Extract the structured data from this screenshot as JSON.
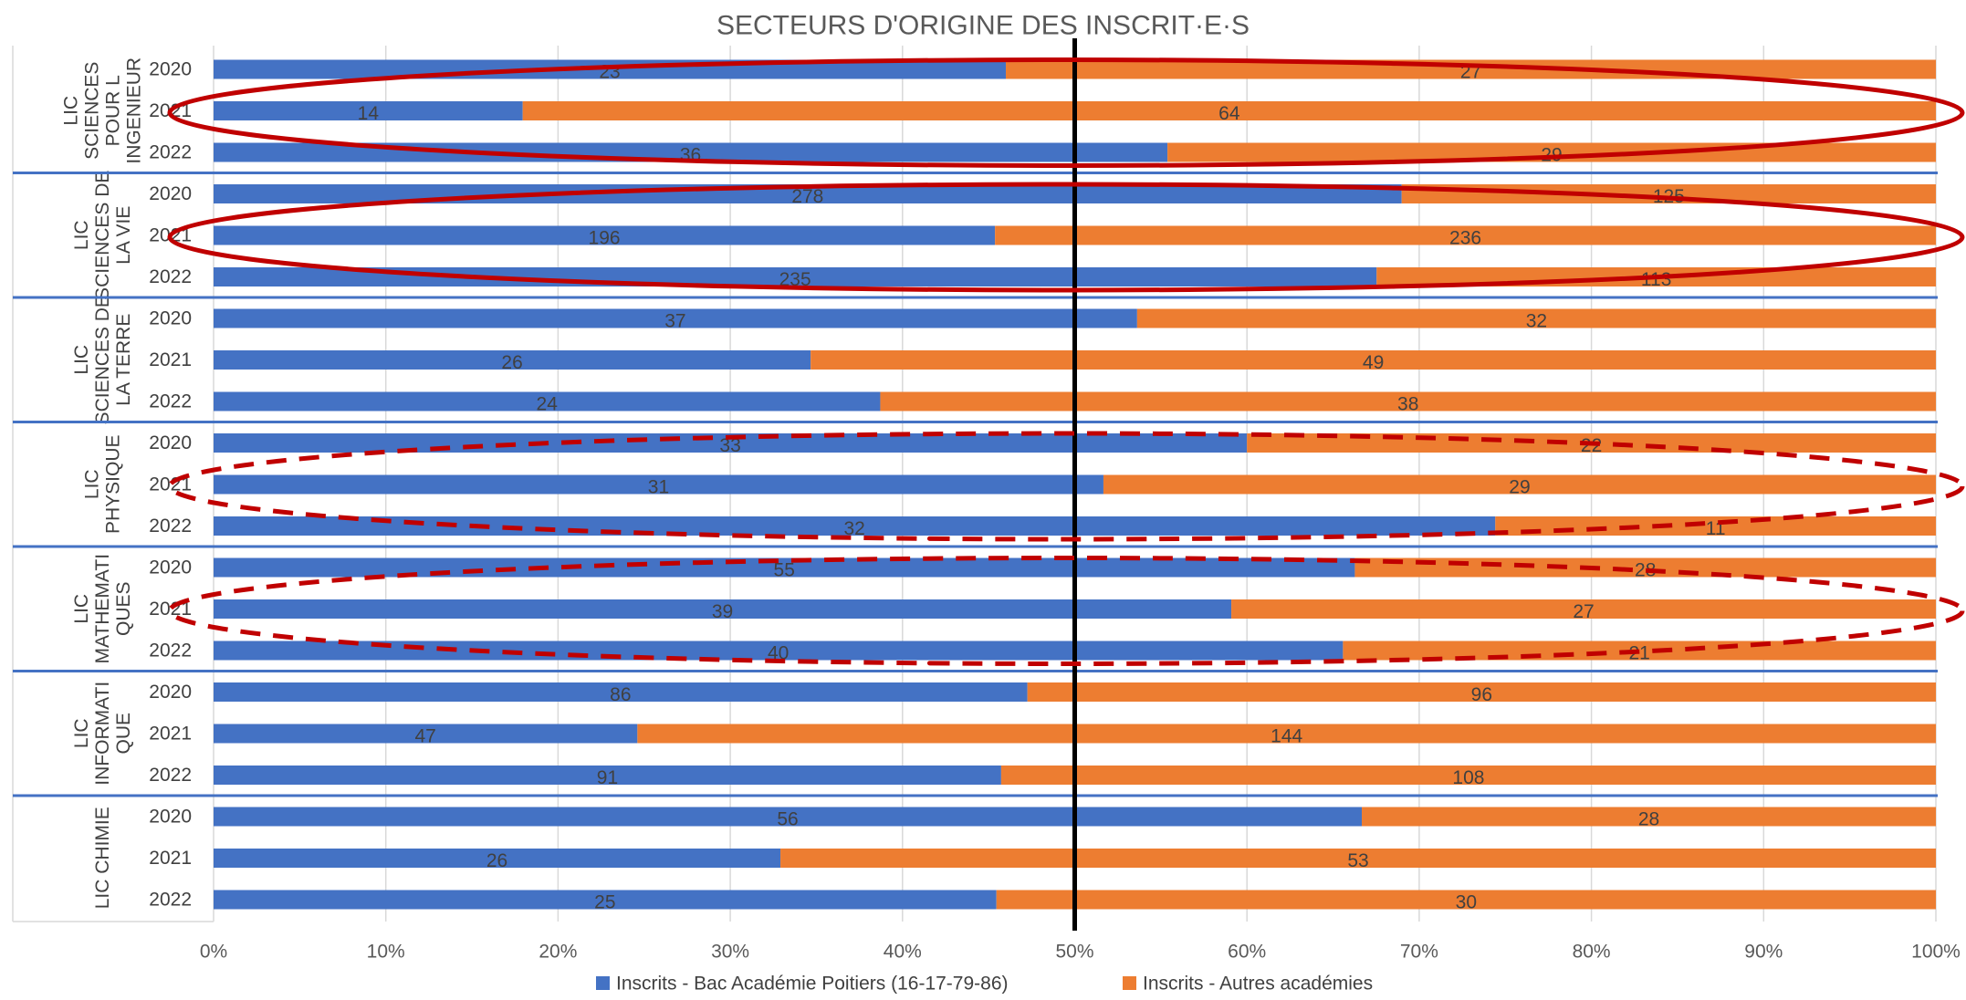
{
  "chart_data": {
    "type": "bar",
    "orientation": "horizontal",
    "stacking": "percent",
    "title": "SECTEURS D'ORIGINE DES INSCRIT·E·S",
    "xlim": [
      0,
      1
    ],
    "x_tick_labels": [
      "0%",
      "10%",
      "20%",
      "30%",
      "40%",
      "50%",
      "60%",
      "70%",
      "80%",
      "90%",
      "100%"
    ],
    "grid": true,
    "legend_position": "bottom",
    "reference_line": 0.5,
    "colors": {
      "series1": "#4472C4",
      "series2": "#ED7D31",
      "highlight": "#C00000",
      "reference": "#000000",
      "separator": "#4472C4",
      "grid": "#D9D9D9",
      "text": "#404040"
    },
    "series": [
      {
        "name": "Inscrits - Bac Académie Poitiers (16-17-79-86)"
      },
      {
        "name": "Inscrits - Autres académies"
      }
    ],
    "groups": [
      {
        "label": "LIC SCIENCES POUR L INGENIEUR",
        "label_lines": [
          "LIC",
          "SCIENCES",
          "POUR L",
          "INGENIEUR"
        ],
        "highlight": "solid",
        "rows": [
          {
            "year": "2020",
            "values": [
              23,
              27
            ]
          },
          {
            "year": "2021",
            "values": [
              14,
              64
            ]
          },
          {
            "year": "2022",
            "values": [
              36,
              29
            ]
          }
        ]
      },
      {
        "label": "LIC SCIENCES DE LA VIE",
        "label_lines": [
          "LIC",
          "SCIENCES DE",
          "LA VIE"
        ],
        "highlight": "solid",
        "rows": [
          {
            "year": "2020",
            "values": [
              278,
              125
            ]
          },
          {
            "year": "2021",
            "values": [
              196,
              236
            ]
          },
          {
            "year": "2022",
            "values": [
              235,
              113
            ]
          }
        ]
      },
      {
        "label": "LIC SCIENCES DE LA TERRE",
        "label_lines": [
          "LIC",
          "SCIENCES DE",
          "LA TERRE"
        ],
        "highlight": "none",
        "rows": [
          {
            "year": "2020",
            "values": [
              37,
              32
            ]
          },
          {
            "year": "2021",
            "values": [
              26,
              49
            ]
          },
          {
            "year": "2022",
            "values": [
              24,
              38
            ]
          }
        ]
      },
      {
        "label": "LIC PHYSIQUE",
        "label_lines": [
          "LIC",
          "PHYSIQUE"
        ],
        "highlight": "dashed",
        "rows": [
          {
            "year": "2020",
            "values": [
              33,
              22
            ]
          },
          {
            "year": "2021",
            "values": [
              31,
              29
            ]
          },
          {
            "year": "2022",
            "values": [
              32,
              11
            ]
          }
        ]
      },
      {
        "label": "LIC MATHEMATIQUES",
        "label_lines": [
          "LIC",
          "MATHEMATI",
          "QUES"
        ],
        "highlight": "dashed",
        "rows": [
          {
            "year": "2020",
            "values": [
              55,
              28
            ]
          },
          {
            "year": "2021",
            "values": [
              39,
              27
            ]
          },
          {
            "year": "2022",
            "values": [
              40,
              21
            ]
          }
        ]
      },
      {
        "label": "LIC INFORMATIQUE",
        "label_lines": [
          "LIC",
          "INFORMATI",
          "QUE"
        ],
        "highlight": "none",
        "rows": [
          {
            "year": "2020",
            "values": [
              86,
              96
            ]
          },
          {
            "year": "2021",
            "values": [
              47,
              144
            ]
          },
          {
            "year": "2022",
            "values": [
              91,
              108
            ]
          }
        ]
      },
      {
        "label": "LIC CHIMIE",
        "label_lines": [
          "LIC CHIMIE"
        ],
        "highlight": "none",
        "rows": [
          {
            "year": "2020",
            "values": [
              56,
              28
            ]
          },
          {
            "year": "2021",
            "values": [
              26,
              53
            ]
          },
          {
            "year": "2022",
            "values": [
              25,
              30
            ]
          }
        ]
      }
    ]
  }
}
